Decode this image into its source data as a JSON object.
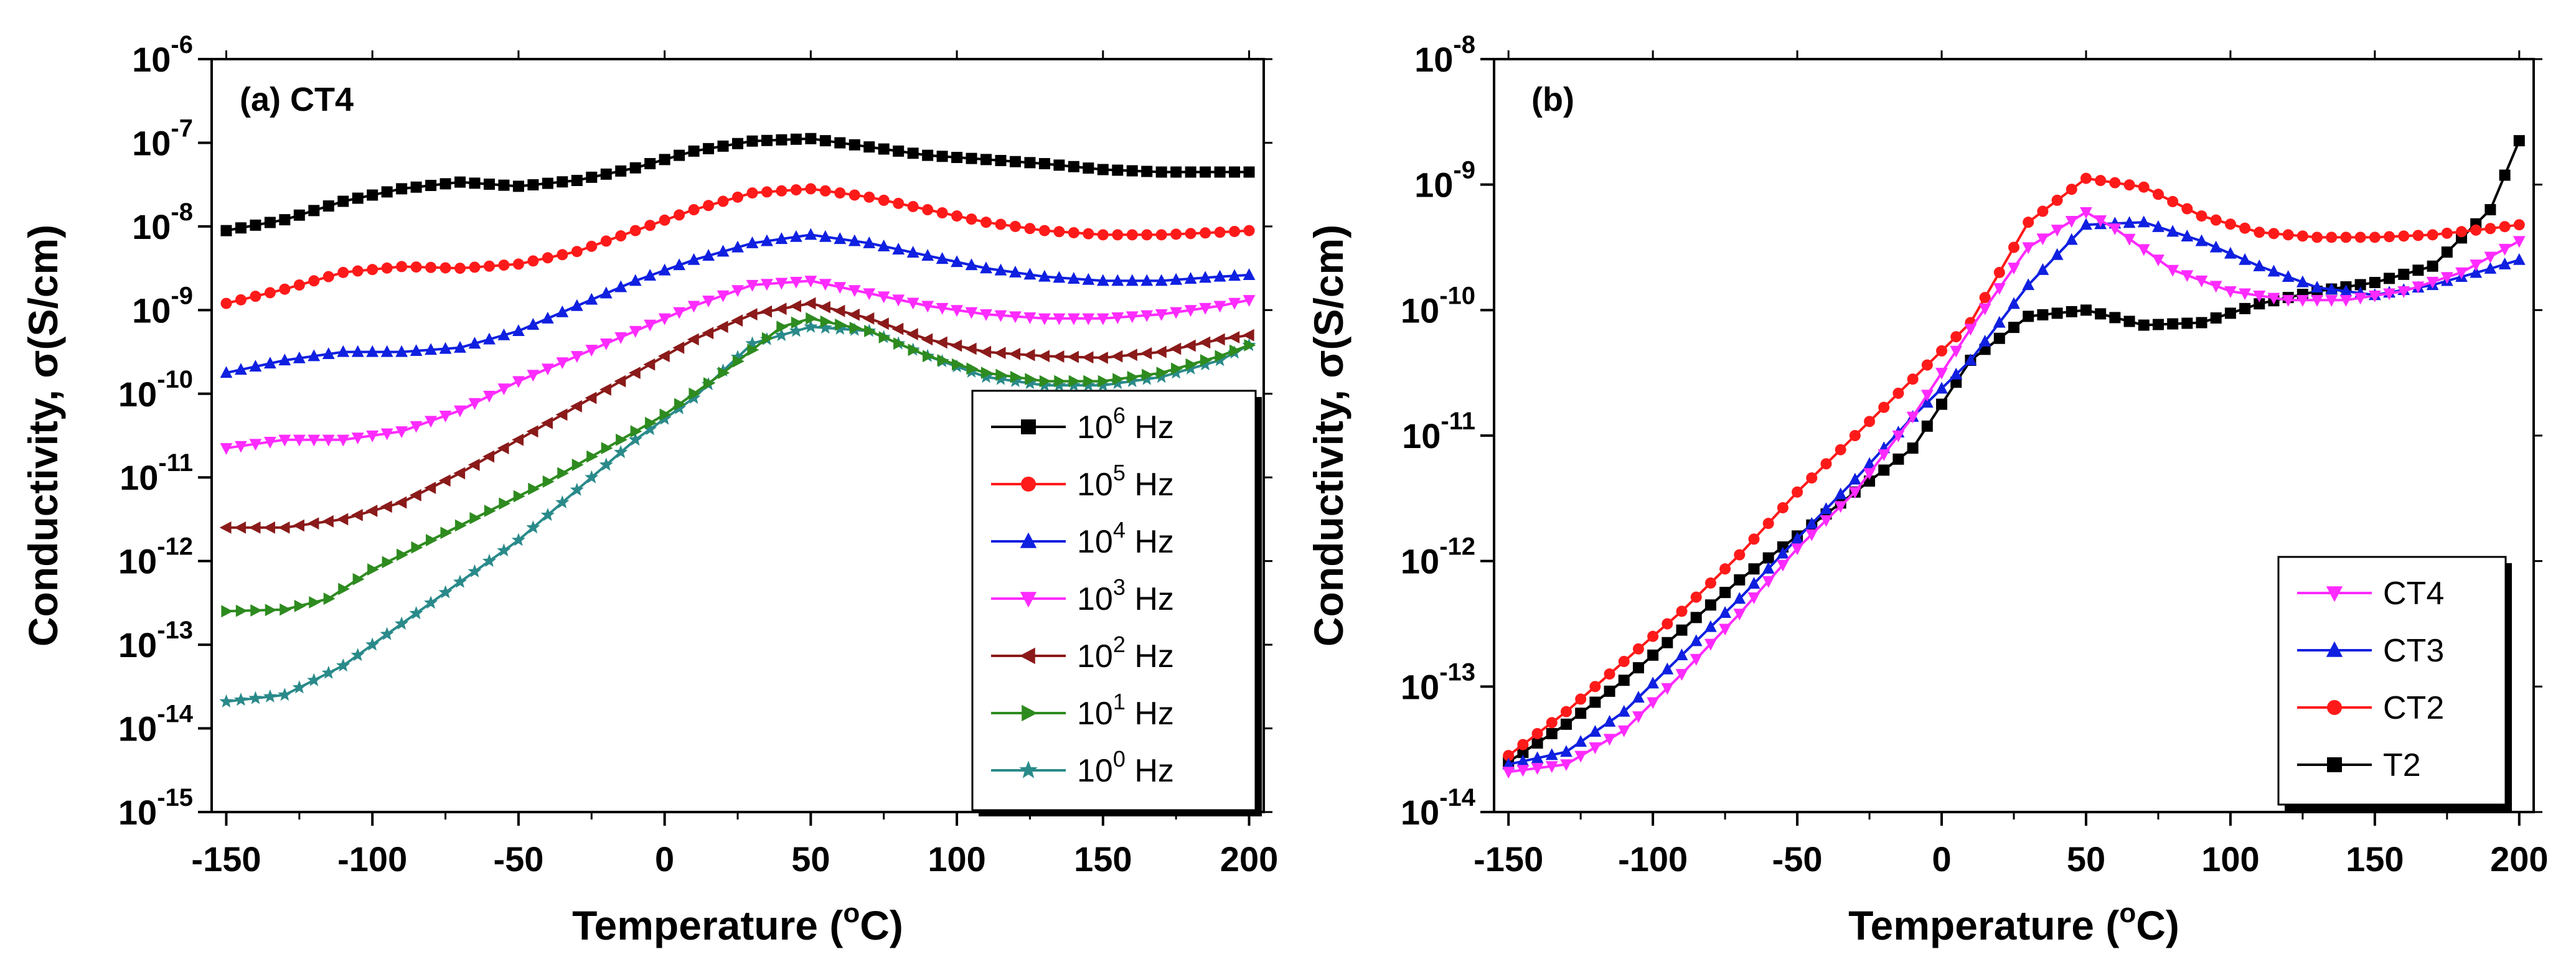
{
  "chart_data": [
    {
      "id": "a",
      "type": "line",
      "panel_label": "(a)",
      "title": "CT4",
      "xlabel": "Temperature (",
      "xlabel_sup": "o",
      "xlabel_end": "C)",
      "ylabel": "Conductivity, σ(S/cm)",
      "y_scale": "log",
      "xlim": [
        -155,
        205
      ],
      "ylim_exp": [
        -15,
        -6
      ],
      "x_ticks": [
        -150,
        -100,
        -50,
        0,
        50,
        100,
        150,
        200
      ],
      "x_tick_labels": [
        "-150",
        "-100",
        "-50",
        "0",
        "50",
        "100",
        "150",
        "200"
      ],
      "y_ticks_exp": [
        -15,
        -14,
        -13,
        -12,
        -11,
        -10,
        -9,
        -8,
        -7,
        -6
      ],
      "y_tick_base": "10",
      "legend_position": "bottom-right",
      "grid": false,
      "series": [
        {
          "name": "10^0 Hz",
          "label_base": "10",
          "label_exp": "0",
          "label_unit": " Hz",
          "color": "#2a8a8a",
          "marker": "star",
          "points": [
            [
              -150,
              -13.68
            ],
            [
              -130,
              -13.6
            ],
            [
              -110,
              -13.25
            ],
            [
              -90,
              -12.75
            ],
            [
              -70,
              -12.25
            ],
            [
              -50,
              -11.75
            ],
            [
              -30,
              -11.15
            ],
            [
              -10,
              -10.55
            ],
            [
              10,
              -10.05
            ],
            [
              30,
              -9.4
            ],
            [
              50,
              -9.2
            ],
            [
              70,
              -9.25
            ],
            [
              90,
              -9.55
            ],
            [
              110,
              -9.8
            ],
            [
              130,
              -9.9
            ],
            [
              150,
              -9.9
            ],
            [
              170,
              -9.8
            ],
            [
              190,
              -9.6
            ],
            [
              200,
              -9.42
            ]
          ]
        },
        {
          "name": "10^1 Hz",
          "label_base": "10",
          "label_exp": "1",
          "label_unit": " Hz",
          "color": "#2e8b1f",
          "marker": "triangle-right",
          "points": [
            [
              -150,
              -12.6
            ],
            [
              -130,
              -12.58
            ],
            [
              -115,
              -12.45
            ],
            [
              -100,
              -12.1
            ],
            [
              -80,
              -11.75
            ],
            [
              -60,
              -11.4
            ],
            [
              -40,
              -11.05
            ],
            [
              -20,
              -10.65
            ],
            [
              0,
              -10.25
            ],
            [
              20,
              -9.75
            ],
            [
              40,
              -9.2
            ],
            [
              50,
              -9.1
            ],
            [
              70,
              -9.25
            ],
            [
              90,
              -9.55
            ],
            [
              110,
              -9.75
            ],
            [
              130,
              -9.85
            ],
            [
              150,
              -9.85
            ],
            [
              170,
              -9.75
            ],
            [
              190,
              -9.55
            ],
            [
              200,
              -9.42
            ]
          ]
        },
        {
          "name": "10^2 Hz",
          "label_base": "10",
          "label_exp": "2",
          "label_unit": " Hz",
          "color": "#8b1a1a",
          "marker": "triangle-left",
          "points": [
            [
              -150,
              -11.6
            ],
            [
              -130,
              -11.6
            ],
            [
              -110,
              -11.5
            ],
            [
              -90,
              -11.3
            ],
            [
              -70,
              -10.95
            ],
            [
              -50,
              -10.55
            ],
            [
              -30,
              -10.15
            ],
            [
              -10,
              -9.75
            ],
            [
              10,
              -9.35
            ],
            [
              30,
              -9.05
            ],
            [
              50,
              -8.92
            ],
            [
              70,
              -9.1
            ],
            [
              90,
              -9.35
            ],
            [
              110,
              -9.5
            ],
            [
              130,
              -9.55
            ],
            [
              150,
              -9.57
            ],
            [
              170,
              -9.5
            ],
            [
              190,
              -9.35
            ],
            [
              200,
              -9.3
            ]
          ]
        },
        {
          "name": "10^3 Hz",
          "label_base": "10",
          "label_exp": "3",
          "label_unit": " Hz",
          "color": "#ff2bff",
          "marker": "triangle-down",
          "points": [
            [
              -150,
              -10.65
            ],
            [
              -130,
              -10.55
            ],
            [
              -110,
              -10.55
            ],
            [
              -90,
              -10.45
            ],
            [
              -70,
              -10.2
            ],
            [
              -50,
              -9.85
            ],
            [
              -30,
              -9.55
            ],
            [
              -10,
              -9.25
            ],
            [
              10,
              -8.95
            ],
            [
              30,
              -8.7
            ],
            [
              50,
              -8.65
            ],
            [
              70,
              -8.8
            ],
            [
              90,
              -8.95
            ],
            [
              110,
              -9.05
            ],
            [
              130,
              -9.1
            ],
            [
              150,
              -9.1
            ],
            [
              170,
              -9.05
            ],
            [
              190,
              -8.95
            ],
            [
              200,
              -8.88
            ]
          ]
        },
        {
          "name": "10^4 Hz",
          "label_base": "10",
          "label_exp": "4",
          "label_unit": " Hz",
          "color": "#1020e0",
          "marker": "triangle-up",
          "points": [
            [
              -150,
              -9.75
            ],
            [
              -130,
              -9.6
            ],
            [
              -110,
              -9.5
            ],
            [
              -90,
              -9.5
            ],
            [
              -70,
              -9.45
            ],
            [
              -50,
              -9.25
            ],
            [
              -30,
              -8.95
            ],
            [
              -10,
              -8.65
            ],
            [
              10,
              -8.4
            ],
            [
              30,
              -8.2
            ],
            [
              50,
              -8.1
            ],
            [
              70,
              -8.2
            ],
            [
              90,
              -8.35
            ],
            [
              110,
              -8.5
            ],
            [
              130,
              -8.6
            ],
            [
              150,
              -8.65
            ],
            [
              170,
              -8.65
            ],
            [
              190,
              -8.6
            ],
            [
              200,
              -8.58
            ]
          ]
        },
        {
          "name": "10^5 Hz",
          "label_base": "10",
          "label_exp": "5",
          "label_unit": " Hz",
          "color": "#ff1a1a",
          "marker": "circle",
          "points": [
            [
              -150,
              -8.92
            ],
            [
              -130,
              -8.75
            ],
            [
              -110,
              -8.55
            ],
            [
              -90,
              -8.48
            ],
            [
              -70,
              -8.5
            ],
            [
              -50,
              -8.45
            ],
            [
              -30,
              -8.3
            ],
            [
              -10,
              -8.05
            ],
            [
              10,
              -7.8
            ],
            [
              30,
              -7.6
            ],
            [
              50,
              -7.55
            ],
            [
              70,
              -7.65
            ],
            [
              90,
              -7.8
            ],
            [
              110,
              -7.95
            ],
            [
              130,
              -8.05
            ],
            [
              150,
              -8.1
            ],
            [
              170,
              -8.1
            ],
            [
              190,
              -8.07
            ],
            [
              200,
              -8.05
            ]
          ]
        },
        {
          "name": "10^6 Hz",
          "label_base": "10",
          "label_exp": "6",
          "label_unit": " Hz",
          "color": "#000000",
          "marker": "square",
          "points": [
            [
              -150,
              -8.05
            ],
            [
              -130,
              -7.92
            ],
            [
              -110,
              -7.7
            ],
            [
              -90,
              -7.55
            ],
            [
              -70,
              -7.47
            ],
            [
              -50,
              -7.52
            ],
            [
              -30,
              -7.45
            ],
            [
              -10,
              -7.3
            ],
            [
              10,
              -7.1
            ],
            [
              30,
              -6.98
            ],
            [
              50,
              -6.95
            ],
            [
              70,
              -7.05
            ],
            [
              90,
              -7.15
            ],
            [
              110,
              -7.2
            ],
            [
              130,
              -7.25
            ],
            [
              150,
              -7.32
            ],
            [
              170,
              -7.35
            ],
            [
              190,
              -7.35
            ],
            [
              200,
              -7.35
            ]
          ]
        }
      ]
    },
    {
      "id": "b",
      "type": "line",
      "panel_label": "(b)",
      "title": "",
      "xlabel": "Temperature (",
      "xlabel_sup": "o",
      "xlabel_end": "C)",
      "ylabel": "Conductivity, σ(S/cm)",
      "y_scale": "log",
      "xlim": [
        -155,
        205
      ],
      "ylim_exp": [
        -14,
        -8
      ],
      "x_ticks": [
        -150,
        -100,
        -50,
        0,
        50,
        100,
        150,
        200
      ],
      "x_tick_labels": [
        "-150",
        "-100",
        "-50",
        "0",
        "50",
        "100",
        "150",
        "200"
      ],
      "y_ticks_exp": [
        -14,
        -13,
        -12,
        -11,
        -10,
        -9,
        -8
      ],
      "y_tick_base": "10",
      "legend_position": "bottom-right",
      "grid": false,
      "series": [
        {
          "name": "T2",
          "label_base": "T2",
          "label_exp": "",
          "label_unit": "",
          "color": "#000000",
          "marker": "square",
          "points": [
            [
              -150,
              -13.6
            ],
            [
              -130,
              -13.3
            ],
            [
              -110,
              -12.95
            ],
            [
              -90,
              -12.55
            ],
            [
              -70,
              -12.15
            ],
            [
              -50,
              -11.8
            ],
            [
              -30,
              -11.45
            ],
            [
              -10,
              -11.1
            ],
            [
              10,
              -10.4
            ],
            [
              30,
              -10.05
            ],
            [
              50,
              -10.0
            ],
            [
              70,
              -10.12
            ],
            [
              90,
              -10.1
            ],
            [
              110,
              -9.95
            ],
            [
              130,
              -9.85
            ],
            [
              150,
              -9.78
            ],
            [
              170,
              -9.65
            ],
            [
              190,
              -9.2
            ],
            [
              200,
              -8.65
            ]
          ]
        },
        {
          "name": "CT2",
          "label_base": "CT2",
          "label_exp": "",
          "label_unit": "",
          "color": "#ff1a1a",
          "marker": "circle",
          "points": [
            [
              -150,
              -13.55
            ],
            [
              -130,
              -13.2
            ],
            [
              -110,
              -12.8
            ],
            [
              -90,
              -12.4
            ],
            [
              -70,
              -11.95
            ],
            [
              -50,
              -11.45
            ],
            [
              -30,
              -11.0
            ],
            [
              -10,
              -10.55
            ],
            [
              10,
              -10.1
            ],
            [
              30,
              -9.3
            ],
            [
              50,
              -8.95
            ],
            [
              70,
              -9.02
            ],
            [
              90,
              -9.25
            ],
            [
              110,
              -9.38
            ],
            [
              130,
              -9.42
            ],
            [
              150,
              -9.42
            ],
            [
              170,
              -9.4
            ],
            [
              190,
              -9.35
            ],
            [
              200,
              -9.32
            ]
          ]
        },
        {
          "name": "CT3",
          "label_base": "CT3",
          "label_exp": "",
          "label_unit": "",
          "color": "#1020e0",
          "marker": "triangle-up",
          "points": [
            [
              -150,
              -13.62
            ],
            [
              -130,
              -13.52
            ],
            [
              -110,
              -13.2
            ],
            [
              -90,
              -12.75
            ],
            [
              -70,
              -12.3
            ],
            [
              -50,
              -11.82
            ],
            [
              -30,
              -11.35
            ],
            [
              -10,
              -10.85
            ],
            [
              10,
              -10.4
            ],
            [
              30,
              -9.8
            ],
            [
              50,
              -9.32
            ],
            [
              70,
              -9.3
            ],
            [
              90,
              -9.45
            ],
            [
              110,
              -9.65
            ],
            [
              130,
              -9.82
            ],
            [
              150,
              -9.88
            ],
            [
              170,
              -9.8
            ],
            [
              190,
              -9.67
            ],
            [
              200,
              -9.6
            ]
          ]
        },
        {
          "name": "CT4",
          "label_base": "CT4",
          "label_exp": "",
          "label_unit": "",
          "color": "#ff2bff",
          "marker": "triangle-down",
          "points": [
            [
              -150,
              -13.68
            ],
            [
              -130,
              -13.62
            ],
            [
              -110,
              -13.35
            ],
            [
              -90,
              -12.9
            ],
            [
              -70,
              -12.42
            ],
            [
              -50,
              -11.9
            ],
            [
              -30,
              -11.45
            ],
            [
              -10,
              -10.85
            ],
            [
              10,
              -10.15
            ],
            [
              30,
              -9.5
            ],
            [
              50,
              -9.22
            ],
            [
              60,
              -9.35
            ],
            [
              80,
              -9.68
            ],
            [
              100,
              -9.85
            ],
            [
              120,
              -9.92
            ],
            [
              140,
              -9.92
            ],
            [
              160,
              -9.85
            ],
            [
              180,
              -9.7
            ],
            [
              200,
              -9.45
            ]
          ]
        }
      ]
    }
  ]
}
